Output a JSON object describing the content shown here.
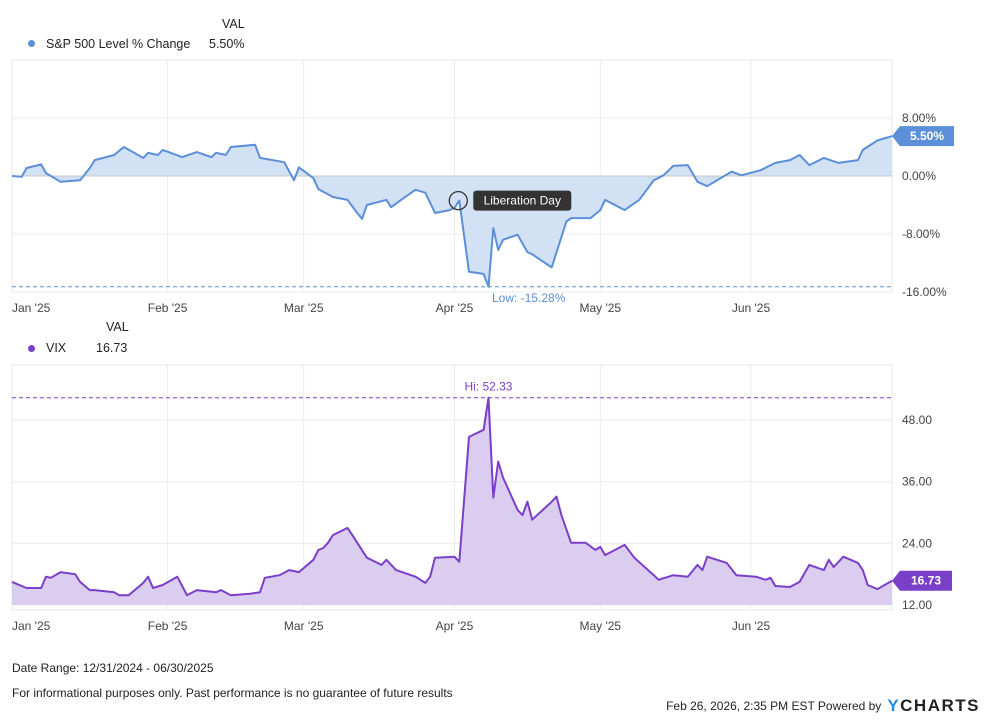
{
  "chart_data": [
    {
      "type": "area",
      "legend": {
        "header": "VAL",
        "series_name": "S&P 500 Level % Change",
        "value": "5.50%"
      },
      "color": "#5b8fd9",
      "fill": "#d3e1f5",
      "y_ticks": [
        "8.00%",
        "0.00%",
        "-8.00%",
        "-16.00%"
      ],
      "y_tick_values": [
        8,
        0,
        -8,
        -16
      ],
      "ylim": [
        -16,
        16
      ],
      "x_ticks": [
        "Jan '25",
        "Feb '25",
        "Mar '25",
        "Apr '25",
        "May '25",
        "Jun '25"
      ],
      "grid": true,
      "last_value_badge": "5.50%",
      "low": {
        "label": "Low: -15.28%",
        "value": -15.28
      },
      "annotation": {
        "label": "Liberation Day",
        "date": "2025-04-02",
        "value": -3.4
      },
      "points": [
        [
          "2024-12-31",
          0
        ],
        [
          "2025-01-02",
          -0.1
        ],
        [
          "2025-01-03",
          1.1
        ],
        [
          "2025-01-06",
          1.6
        ],
        [
          "2025-01-07",
          0.4
        ],
        [
          "2025-01-10",
          -0.8
        ],
        [
          "2025-01-14",
          -0.6
        ],
        [
          "2025-01-16",
          1.1
        ],
        [
          "2025-01-17",
          2.2
        ],
        [
          "2025-01-21",
          2.9
        ],
        [
          "2025-01-23",
          4.0
        ],
        [
          "2025-01-27",
          2.5
        ],
        [
          "2025-01-28",
          3.2
        ],
        [
          "2025-01-30",
          2.9
        ],
        [
          "2025-01-31",
          3.6
        ],
        [
          "2025-02-04",
          2.6
        ],
        [
          "2025-02-07",
          3.3
        ],
        [
          "2025-02-10",
          2.6
        ],
        [
          "2025-02-11",
          3.2
        ],
        [
          "2025-02-13",
          2.9
        ],
        [
          "2025-02-14",
          4.0
        ],
        [
          "2025-02-19",
          4.3
        ],
        [
          "2025-02-20",
          2.5
        ],
        [
          "2025-02-25",
          1.9
        ],
        [
          "2025-02-27",
          -0.6
        ],
        [
          "2025-02-28",
          1.2
        ],
        [
          "2025-03-03",
          -0.3
        ],
        [
          "2025-03-04",
          -1.8
        ],
        [
          "2025-03-07",
          -2.9
        ],
        [
          "2025-03-10",
          -3.3
        ],
        [
          "2025-03-12",
          -5.1
        ],
        [
          "2025-03-13",
          -5.9
        ],
        [
          "2025-03-14",
          -4.0
        ],
        [
          "2025-03-18",
          -3.3
        ],
        [
          "2025-03-19",
          -4.3
        ],
        [
          "2025-03-21",
          -3.3
        ],
        [
          "2025-03-24",
          -1.9
        ],
        [
          "2025-03-26",
          -2.3
        ],
        [
          "2025-03-28",
          -5.1
        ],
        [
          "2025-03-31",
          -4.7
        ],
        [
          "2025-04-01",
          -4.4
        ],
        [
          "2025-04-02",
          -3.4
        ],
        [
          "2025-04-04",
          -13.2
        ],
        [
          "2025-04-07",
          -13.5
        ],
        [
          "2025-04-08",
          -15.28
        ],
        [
          "2025-04-09",
          -7.2
        ],
        [
          "2025-04-10",
          -10.2
        ],
        [
          "2025-04-11",
          -8.8
        ],
        [
          "2025-04-14",
          -8.1
        ],
        [
          "2025-04-16",
          -10.5
        ],
        [
          "2025-04-17",
          -10.8
        ],
        [
          "2025-04-21",
          -12.6
        ],
        [
          "2025-04-24",
          -6.3
        ],
        [
          "2025-04-25",
          -5.8
        ],
        [
          "2025-04-29",
          -5.8
        ],
        [
          "2025-05-01",
          -4.7
        ],
        [
          "2025-05-02",
          -3.3
        ],
        [
          "2025-05-06",
          -4.7
        ],
        [
          "2025-05-09",
          -3.3
        ],
        [
          "2025-05-12",
          -0.6
        ],
        [
          "2025-05-14",
          0.1
        ],
        [
          "2025-05-16",
          1.4
        ],
        [
          "2025-05-19",
          1.5
        ],
        [
          "2025-05-21",
          -0.8
        ],
        [
          "2025-05-23",
          -1.4
        ],
        [
          "2025-05-28",
          0.6
        ],
        [
          "2025-05-30",
          0.1
        ],
        [
          "2025-06-03",
          0.8
        ],
        [
          "2025-06-06",
          1.8
        ],
        [
          "2025-06-09",
          2.2
        ],
        [
          "2025-06-11",
          2.9
        ],
        [
          "2025-06-13",
          1.5
        ],
        [
          "2025-06-16",
          2.5
        ],
        [
          "2025-06-19",
          1.8
        ],
        [
          "2025-06-23",
          2.2
        ],
        [
          "2025-06-24",
          3.6
        ],
        [
          "2025-06-27",
          4.9
        ],
        [
          "2025-06-30",
          5.5
        ]
      ]
    },
    {
      "type": "area",
      "legend": {
        "header": "VAL",
        "series_name": "VIX",
        "value": "16.73"
      },
      "color": "#7a3fc8",
      "fill": "#dacdf0",
      "y_ticks": [
        "48.00",
        "36.00",
        "24.00",
        "12.00"
      ],
      "y_tick_values": [
        48,
        36,
        24,
        12
      ],
      "ylim": [
        12,
        58.7
      ],
      "x_ticks": [
        "Jan '25",
        "Feb '25",
        "Mar '25",
        "Apr '25",
        "May '25",
        "Jun '25"
      ],
      "grid": true,
      "last_value_badge": "16.73",
      "high": {
        "label": "Hi: 52.33",
        "value": 52.33
      },
      "points": [
        [
          "2024-12-31",
          16.5
        ],
        [
          "2025-01-03",
          15.3
        ],
        [
          "2025-01-06",
          15.3
        ],
        [
          "2025-01-07",
          17.5
        ],
        [
          "2025-01-08",
          17.3
        ],
        [
          "2025-01-10",
          18.4
        ],
        [
          "2025-01-13",
          18.0
        ],
        [
          "2025-01-14",
          16.5
        ],
        [
          "2025-01-16",
          14.9
        ],
        [
          "2025-01-17",
          14.9
        ],
        [
          "2025-01-21",
          14.5
        ],
        [
          "2025-01-22",
          13.9
        ],
        [
          "2025-01-24",
          13.9
        ],
        [
          "2025-01-27",
          16.3
        ],
        [
          "2025-01-28",
          17.5
        ],
        [
          "2025-01-29",
          15.3
        ],
        [
          "2025-01-31",
          15.9
        ],
        [
          "2025-02-03",
          17.5
        ],
        [
          "2025-02-05",
          13.9
        ],
        [
          "2025-02-07",
          14.9
        ],
        [
          "2025-02-11",
          14.5
        ],
        [
          "2025-02-12",
          14.9
        ],
        [
          "2025-02-14",
          13.9
        ],
        [
          "2025-02-18",
          14.2
        ],
        [
          "2025-02-20",
          14.5
        ],
        [
          "2025-02-21",
          17.3
        ],
        [
          "2025-02-24",
          17.8
        ],
        [
          "2025-02-26",
          18.8
        ],
        [
          "2025-02-28",
          18.4
        ],
        [
          "2025-03-03",
          20.8
        ],
        [
          "2025-03-04",
          22.7
        ],
        [
          "2025-03-05",
          23.1
        ],
        [
          "2025-03-06",
          24.1
        ],
        [
          "2025-03-07",
          25.6
        ],
        [
          "2025-03-10",
          27.0
        ],
        [
          "2025-03-11",
          25.6
        ],
        [
          "2025-03-14",
          21.2
        ],
        [
          "2025-03-17",
          19.8
        ],
        [
          "2025-03-18",
          20.8
        ],
        [
          "2025-03-20",
          18.8
        ],
        [
          "2025-03-24",
          17.5
        ],
        [
          "2025-03-26",
          16.3
        ],
        [
          "2025-03-27",
          17.5
        ],
        [
          "2025-03-28",
          21.2
        ],
        [
          "2025-04-01",
          21.4
        ],
        [
          "2025-04-02",
          20.4
        ],
        [
          "2025-04-04",
          44.7
        ],
        [
          "2025-04-07",
          46.1
        ],
        [
          "2025-04-08",
          52.33
        ],
        [
          "2025-04-09",
          32.9
        ],
        [
          "2025-04-10",
          39.9
        ],
        [
          "2025-04-11",
          36.8
        ],
        [
          "2025-04-14",
          30.5
        ],
        [
          "2025-04-15",
          29.5
        ],
        [
          "2025-04-16",
          32.1
        ],
        [
          "2025-04-17",
          28.6
        ],
        [
          "2025-04-21",
          32.1
        ],
        [
          "2025-04-22",
          33.1
        ],
        [
          "2025-04-23",
          29.5
        ],
        [
          "2025-04-25",
          24.1
        ],
        [
          "2025-04-28",
          24.1
        ],
        [
          "2025-04-30",
          22.7
        ],
        [
          "2025-05-01",
          23.3
        ],
        [
          "2025-05-02",
          21.7
        ],
        [
          "2025-05-06",
          23.7
        ],
        [
          "2025-05-08",
          21.2
        ],
        [
          "2025-05-12",
          17.8
        ],
        [
          "2025-05-13",
          16.9
        ],
        [
          "2025-05-16",
          17.8
        ],
        [
          "2025-05-19",
          17.5
        ],
        [
          "2025-05-21",
          19.8
        ],
        [
          "2025-05-22",
          18.8
        ],
        [
          "2025-05-23",
          21.4
        ],
        [
          "2025-05-27",
          20.2
        ],
        [
          "2025-05-29",
          17.8
        ],
        [
          "2025-06-02",
          17.5
        ],
        [
          "2025-06-04",
          16.9
        ],
        [
          "2025-06-05",
          17.3
        ],
        [
          "2025-06-06",
          15.7
        ],
        [
          "2025-06-09",
          15.5
        ],
        [
          "2025-06-11",
          16.5
        ],
        [
          "2025-06-13",
          19.8
        ],
        [
          "2025-06-16",
          18.8
        ],
        [
          "2025-06-17",
          20.8
        ],
        [
          "2025-06-18",
          19.4
        ],
        [
          "2025-06-20",
          21.4
        ],
        [
          "2025-06-23",
          20.2
        ],
        [
          "2025-06-24",
          18.8
        ],
        [
          "2025-06-25",
          15.9
        ],
        [
          "2025-06-27",
          15.1
        ],
        [
          "2025-06-30",
          16.73
        ]
      ]
    }
  ],
  "footer": {
    "date_range": "Date Range: 12/31/2024 - 06/30/2025",
    "disclaimer": "For informational purposes only. Past performance is no guarantee of future results",
    "timestamp": "Feb 26, 2026, 2:35 PM EST Powered by",
    "brand": "YCHARTS",
    "brand_color": "#1d8fe1"
  }
}
